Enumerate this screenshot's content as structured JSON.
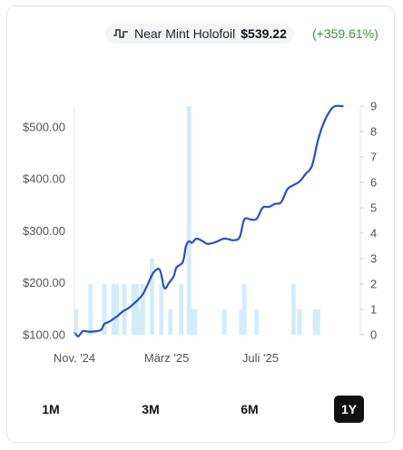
{
  "legend": {
    "series_name": "Near Mint Holofoil",
    "price": "$539.22",
    "change": "(+359.61%)",
    "line_color": "#2a4fc4",
    "bar_color": "#d3ecfb",
    "change_color": "#2e9a3e"
  },
  "range_buttons": [
    {
      "label": "1M",
      "active": false
    },
    {
      "label": "3M",
      "active": false
    },
    {
      "label": "6M",
      "active": false
    },
    {
      "label": "1Y",
      "active": true
    }
  ],
  "chart_data": {
    "type": "line",
    "title": "",
    "xlabel": "",
    "ylabel": "",
    "x_range": [
      "2024-11-01",
      "2025-11-08"
    ],
    "x_ticks": [
      {
        "date": "2024-11-01",
        "label": "Nov. '24"
      },
      {
        "date": "2025-03-01",
        "label": "März '25"
      },
      {
        "date": "2025-07-01",
        "label": "Juli '25"
      }
    ],
    "y_left": {
      "ticks": [
        100,
        200,
        300,
        400,
        500
      ],
      "tick_labels": [
        "$100.00",
        "$200.00",
        "$300.00",
        "$400.00",
        "$500.00"
      ],
      "range": [
        100,
        540
      ]
    },
    "y_right": {
      "ticks": [
        0,
        1,
        2,
        3,
        4,
        5,
        6,
        7,
        8,
        9
      ],
      "tick_labels": [
        "0",
        "1",
        "2",
        "3",
        "4",
        "5",
        "6",
        "7",
        "8",
        "9"
      ],
      "range": [
        0,
        9
      ]
    },
    "grid": false,
    "series": [
      {
        "kind": "line",
        "axis": "left",
        "points": [
          [
            "2024-11-01",
            104
          ],
          [
            "2024-11-06",
            97
          ],
          [
            "2024-11-12",
            107
          ],
          [
            "2024-11-20",
            106
          ],
          [
            "2024-11-30",
            107
          ],
          [
            "2024-12-06",
            110
          ],
          [
            "2024-12-10",
            121
          ],
          [
            "2024-12-16",
            125
          ],
          [
            "2024-12-26",
            135
          ],
          [
            "2025-01-03",
            145
          ],
          [
            "2025-01-11",
            152
          ],
          [
            "2025-01-21",
            165
          ],
          [
            "2025-01-29",
            178
          ],
          [
            "2025-02-06",
            202
          ],
          [
            "2025-02-12",
            220
          ],
          [
            "2025-02-20",
            225
          ],
          [
            "2025-02-26",
            190
          ],
          [
            "2025-03-04",
            200
          ],
          [
            "2025-03-10",
            212
          ],
          [
            "2025-03-14",
            230
          ],
          [
            "2025-03-22",
            240
          ],
          [
            "2025-03-26",
            270
          ],
          [
            "2025-03-30",
            280
          ],
          [
            "2025-04-03",
            277
          ],
          [
            "2025-04-09",
            285
          ],
          [
            "2025-04-17",
            280
          ],
          [
            "2025-04-23",
            275
          ],
          [
            "2025-05-03",
            278
          ],
          [
            "2025-05-15",
            285
          ],
          [
            "2025-05-27",
            282
          ],
          [
            "2025-06-04",
            288
          ],
          [
            "2025-06-10",
            322
          ],
          [
            "2025-06-18",
            322
          ],
          [
            "2025-06-26",
            323
          ],
          [
            "2025-07-04",
            345
          ],
          [
            "2025-07-12",
            346
          ],
          [
            "2025-07-20",
            352
          ],
          [
            "2025-07-28",
            355
          ],
          [
            "2025-08-05",
            380
          ],
          [
            "2025-08-13",
            388
          ],
          [
            "2025-08-21",
            395
          ],
          [
            "2025-08-29",
            410
          ],
          [
            "2025-09-06",
            425
          ],
          [
            "2025-09-14",
            475
          ],
          [
            "2025-09-22",
            510
          ],
          [
            "2025-09-30",
            532
          ],
          [
            "2025-10-06",
            540
          ],
          [
            "2025-10-16",
            540
          ]
        ]
      },
      {
        "kind": "bar",
        "axis": "right",
        "points": [
          [
            "2024-11-03",
            1
          ],
          [
            "2024-11-22",
            2
          ],
          [
            "2024-12-10",
            2
          ],
          [
            "2024-12-22",
            2
          ],
          [
            "2024-12-26",
            2
          ],
          [
            "2025-01-05",
            2
          ],
          [
            "2025-01-17",
            2
          ],
          [
            "2025-01-21",
            2
          ],
          [
            "2025-01-25",
            1
          ],
          [
            "2025-01-29",
            2
          ],
          [
            "2025-02-10",
            3
          ],
          [
            "2025-02-22",
            2
          ],
          [
            "2025-03-06",
            1
          ],
          [
            "2025-03-20",
            2
          ],
          [
            "2025-03-30",
            9
          ],
          [
            "2025-04-03",
            1
          ],
          [
            "2025-04-07",
            1
          ],
          [
            "2025-05-15",
            1
          ],
          [
            "2025-06-06",
            1
          ],
          [
            "2025-06-10",
            2
          ],
          [
            "2025-06-26",
            1
          ],
          [
            "2025-08-13",
            2
          ],
          [
            "2025-08-21",
            1
          ],
          [
            "2025-09-10",
            1
          ],
          [
            "2025-09-14",
            1
          ]
        ]
      }
    ]
  }
}
